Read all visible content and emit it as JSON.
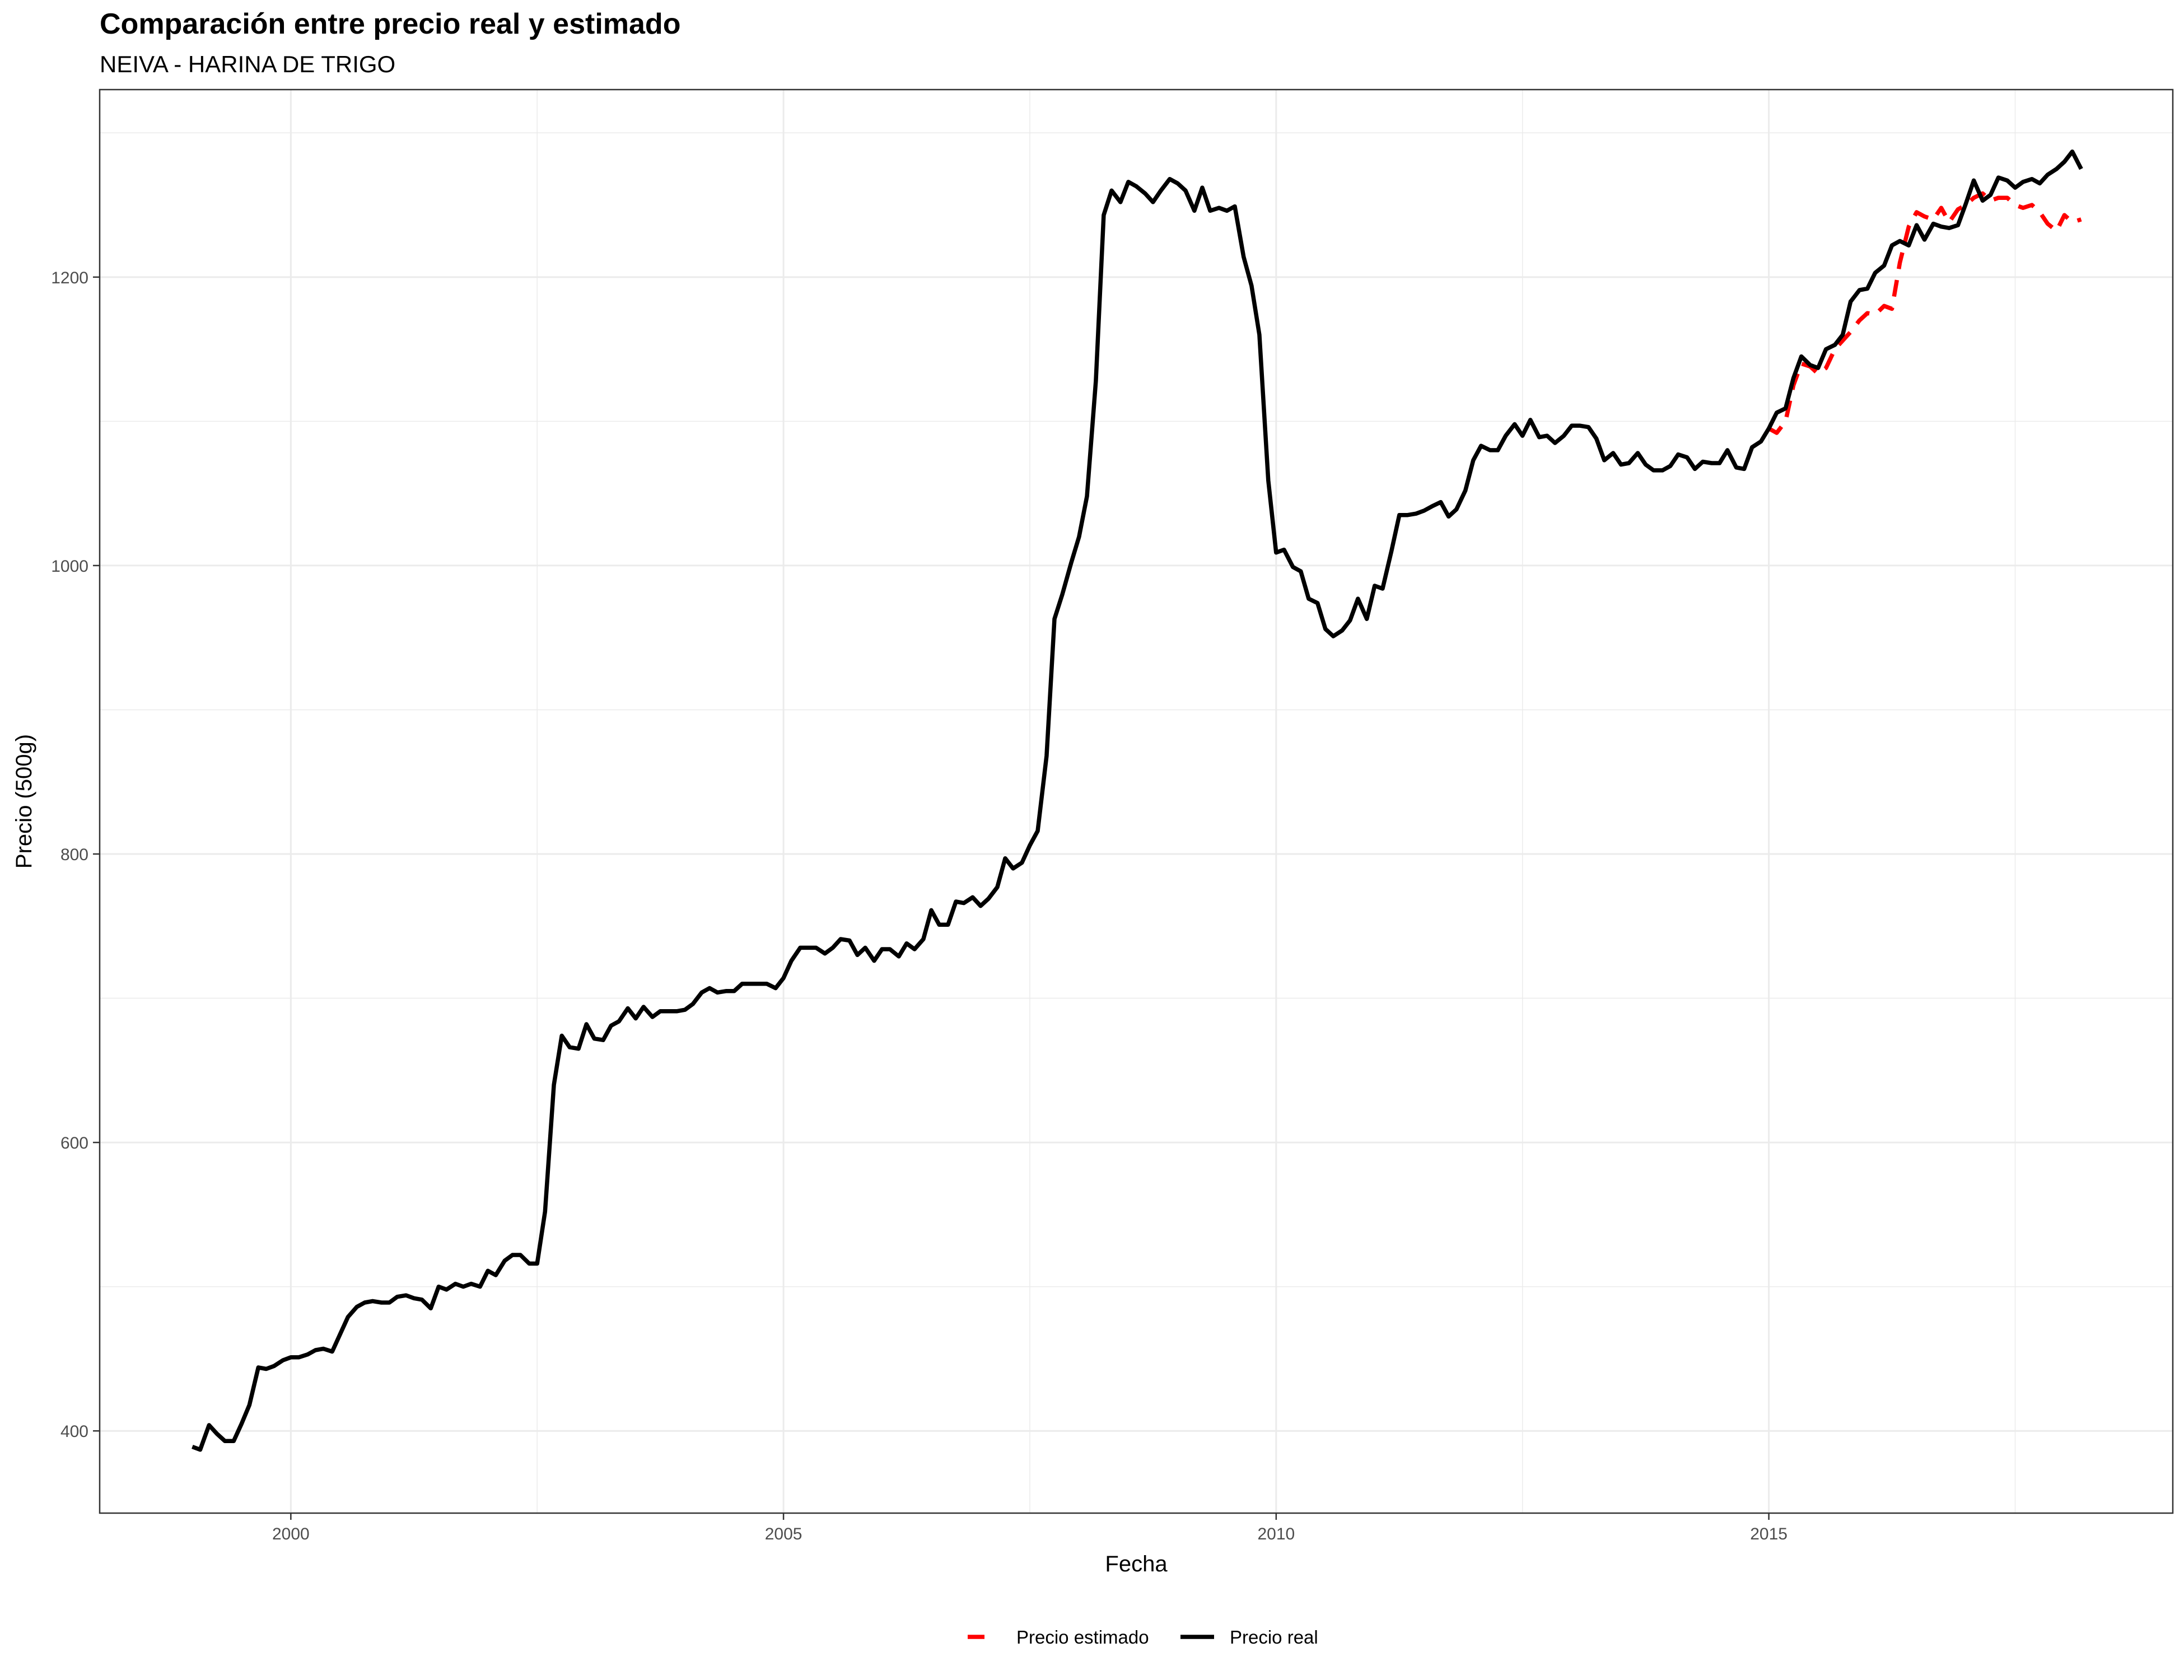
{
  "chart_data": {
    "type": "line",
    "title": "Comparación entre precio real y estimado",
    "subtitle": "NEIVA - HARINA DE TRIGO",
    "xlabel": "Fecha",
    "ylabel": "Precio (500g)",
    "xlim": [
      1998.06,
      2019.1
    ],
    "ylim": [
      343,
      1330
    ],
    "x_ticks": [
      2000,
      2005,
      2010,
      2015
    ],
    "y_ticks": [
      400,
      600,
      800,
      1000,
      1200
    ],
    "grid": true,
    "legend_position": "bottom",
    "series": [
      {
        "name": "Precio estimado",
        "color": "#ff0000",
        "style": "dashed",
        "x": [
          2015.0,
          2015.08,
          2015.17,
          2015.25,
          2015.33,
          2015.42,
          2015.5,
          2015.58,
          2015.67,
          2015.75,
          2015.83,
          2015.92,
          2016.0,
          2016.08,
          2016.17,
          2016.25,
          2016.33,
          2016.42,
          2016.5,
          2016.58,
          2016.67,
          2016.75,
          2016.83,
          2016.92,
          2017.0,
          2017.08,
          2017.17,
          2017.25,
          2017.33,
          2017.42,
          2017.5,
          2017.58,
          2017.67,
          2017.75,
          2017.83,
          2017.92,
          2018.0,
          2018.08,
          2018.17
        ],
        "values": [
          1095,
          1092,
          1100,
          1125,
          1140,
          1138,
          1133,
          1137,
          1150,
          1156,
          1162,
          1170,
          1175,
          1174,
          1180,
          1178,
          1210,
          1235,
          1245,
          1242,
          1240,
          1248,
          1238,
          1247,
          1250,
          1255,
          1258,
          1253,
          1255,
          1255,
          1250,
          1248,
          1250,
          1245,
          1237,
          1232,
          1243,
          1238,
          1240
        ]
      },
      {
        "name": "Precio real",
        "color": "#000000",
        "style": "solid",
        "x": [
          1999.0,
          1999.08,
          1999.17,
          1999.25,
          1999.33,
          1999.42,
          1999.5,
          1999.58,
          1999.67,
          1999.75,
          1999.83,
          1999.92,
          2000.0,
          2000.08,
          2000.17,
          2000.25,
          2000.33,
          2000.42,
          2000.5,
          2000.58,
          2000.67,
          2000.75,
          2000.83,
          2000.92,
          2001.0,
          2001.08,
          2001.17,
          2001.25,
          2001.33,
          2001.42,
          2001.5,
          2001.58,
          2001.67,
          2001.75,
          2001.83,
          2001.92,
          2002.0,
          2002.08,
          2002.17,
          2002.25,
          2002.33,
          2002.42,
          2002.5,
          2002.58,
          2002.67,
          2002.75,
          2002.83,
          2002.92,
          2003.0,
          2003.08,
          2003.17,
          2003.25,
          2003.33,
          2003.42,
          2003.5,
          2003.58,
          2003.67,
          2003.75,
          2003.83,
          2003.92,
          2004.0,
          2004.08,
          2004.17,
          2004.25,
          2004.33,
          2004.42,
          2004.5,
          2004.58,
          2004.67,
          2004.75,
          2004.83,
          2004.92,
          2005.0,
          2005.08,
          2005.17,
          2005.25,
          2005.33,
          2005.42,
          2005.5,
          2005.58,
          2005.67,
          2005.75,
          2005.83,
          2005.92,
          2006.0,
          2006.08,
          2006.17,
          2006.25,
          2006.33,
          2006.42,
          2006.5,
          2006.58,
          2006.67,
          2006.75,
          2006.83,
          2006.92,
          2007.0,
          2007.08,
          2007.17,
          2007.25,
          2007.33,
          2007.42,
          2007.5,
          2007.58,
          2007.67,
          2007.75,
          2007.83,
          2007.92,
          2008.0,
          2008.08,
          2008.17,
          2008.25,
          2008.33,
          2008.42,
          2008.5,
          2008.58,
          2008.67,
          2008.75,
          2008.83,
          2008.92,
          2009.0,
          2009.08,
          2009.17,
          2009.25,
          2009.33,
          2009.42,
          2009.5,
          2009.58,
          2009.67,
          2009.75,
          2009.83,
          2009.92,
          2010.0,
          2010.08,
          2010.17,
          2010.25,
          2010.33,
          2010.42,
          2010.5,
          2010.58,
          2010.67,
          2010.75,
          2010.83,
          2010.92,
          2011.0,
          2011.08,
          2011.17,
          2011.25,
          2011.33,
          2011.42,
          2011.5,
          2011.58,
          2011.67,
          2011.75,
          2011.83,
          2011.92,
          2012.0,
          2012.08,
          2012.17,
          2012.25,
          2012.33,
          2012.42,
          2012.5,
          2012.58,
          2012.67,
          2012.75,
          2012.83,
          2012.92,
          2013.0,
          2013.08,
          2013.17,
          2013.25,
          2013.33,
          2013.42,
          2013.5,
          2013.58,
          2013.67,
          2013.75,
          2013.83,
          2013.92,
          2014.0,
          2014.08,
          2014.17,
          2014.25,
          2014.33,
          2014.42,
          2014.5,
          2014.58,
          2014.67,
          2014.75,
          2014.83,
          2014.92,
          2015.0,
          2015.08,
          2015.17,
          2015.25,
          2015.33,
          2015.42,
          2015.5,
          2015.58,
          2015.67,
          2015.75,
          2015.83,
          2015.92,
          2016.0,
          2016.08,
          2016.17,
          2016.25,
          2016.33,
          2016.42,
          2016.5,
          2016.58,
          2016.67,
          2016.75,
          2016.83,
          2016.92,
          2017.0,
          2017.08,
          2017.17,
          2017.25,
          2017.33,
          2017.42,
          2017.5,
          2017.58,
          2017.67,
          2017.75,
          2017.83,
          2017.92,
          2018.0,
          2018.08,
          2018.17
        ],
        "values": [
          389,
          387,
          404,
          398,
          393,
          393,
          405,
          418,
          444,
          443,
          445,
          449,
          451,
          451,
          453,
          456,
          457,
          455,
          467,
          479,
          486,
          489,
          490,
          489,
          489,
          493,
          494,
          492,
          491,
          485,
          500,
          498,
          502,
          500,
          502,
          500,
          511,
          508,
          518,
          522,
          522,
          516,
          516,
          552,
          640,
          674,
          666,
          665,
          682,
          672,
          671,
          681,
          684,
          693,
          686,
          694,
          687,
          691,
          691,
          691,
          692,
          696,
          704,
          707,
          704,
          705,
          705,
          710,
          710,
          710,
          710,
          707,
          714,
          726,
          735,
          735,
          735,
          731,
          735,
          741,
          740,
          730,
          735,
          726,
          734,
          734,
          729,
          738,
          734,
          741,
          761,
          751,
          751,
          767,
          766,
          770,
          764,
          769,
          777,
          797,
          790,
          794,
          806,
          816,
          868,
          963,
          980,
          1002,
          1020,
          1048,
          1128,
          1243,
          1260,
          1252,
          1266,
          1263,
          1258,
          1252,
          1260,
          1268,
          1265,
          1260,
          1246,
          1262,
          1246,
          1248,
          1246,
          1249,
          1214,
          1194,
          1160,
          1059,
          1009,
          1011,
          999,
          996,
          977,
          974,
          956,
          951,
          955,
          962,
          977,
          963,
          986,
          984,
          1010,
          1035,
          1035,
          1036,
          1038,
          1041,
          1044,
          1034,
          1039,
          1052,
          1073,
          1083,
          1080,
          1080,
          1090,
          1098,
          1090,
          1101,
          1089,
          1090,
          1085,
          1090,
          1097,
          1097,
          1096,
          1088,
          1073,
          1078,
          1070,
          1071,
          1078,
          1070,
          1066,
          1066,
          1069,
          1077,
          1075,
          1067,
          1072,
          1071,
          1071,
          1080,
          1068,
          1067,
          1082,
          1086,
          1095,
          1106,
          1109,
          1130,
          1145,
          1139,
          1137,
          1150,
          1153,
          1160,
          1183,
          1191,
          1192,
          1203,
          1208,
          1222,
          1225,
          1222,
          1236,
          1226,
          1237,
          1235,
          1234,
          1236,
          1251,
          1267,
          1253,
          1257,
          1269,
          1267,
          1262,
          1266,
          1268,
          1265,
          1271,
          1275,
          1280,
          1287,
          1275
        ]
      }
    ]
  }
}
